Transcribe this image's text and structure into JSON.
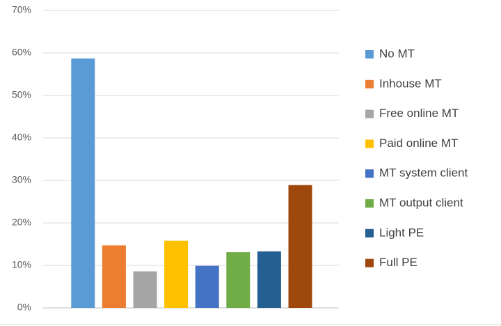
{
  "chart_data": {
    "type": "bar",
    "series": [
      {
        "name": "No MT",
        "color": "#5b9bd5",
        "values": [
          58.7
        ]
      },
      {
        "name": "Inhouse MT",
        "color": "#ed7d31",
        "values": [
          14.7
        ]
      },
      {
        "name": "Free online MT",
        "color": "#a5a5a5",
        "values": [
          8.6
        ]
      },
      {
        "name": "Paid online MT",
        "color": "#ffc000",
        "values": [
          15.8
        ]
      },
      {
        "name": "MT system client",
        "color": "#4472c4",
        "values": [
          9.9
        ]
      },
      {
        "name": "MT output client",
        "color": "#70ad47",
        "values": [
          13.1
        ]
      },
      {
        "name": "Light PE",
        "color": "#255e91",
        "values": [
          13.3
        ]
      },
      {
        "name": "Full PE",
        "color": "#9e480e",
        "values": [
          28.9
        ]
      }
    ],
    "ylim": [
      0,
      70
    ],
    "yticks": [
      {
        "value": 0,
        "label": "0%"
      },
      {
        "value": 10,
        "label": "10%"
      },
      {
        "value": 20,
        "label": "20%"
      },
      {
        "value": 30,
        "label": "30%"
      },
      {
        "value": 40,
        "label": "40%"
      },
      {
        "value": 50,
        "label": "50%"
      },
      {
        "value": 60,
        "label": "60%"
      },
      {
        "value": 70,
        "label": "70%"
      }
    ],
    "grid": true,
    "legend": "right"
  }
}
